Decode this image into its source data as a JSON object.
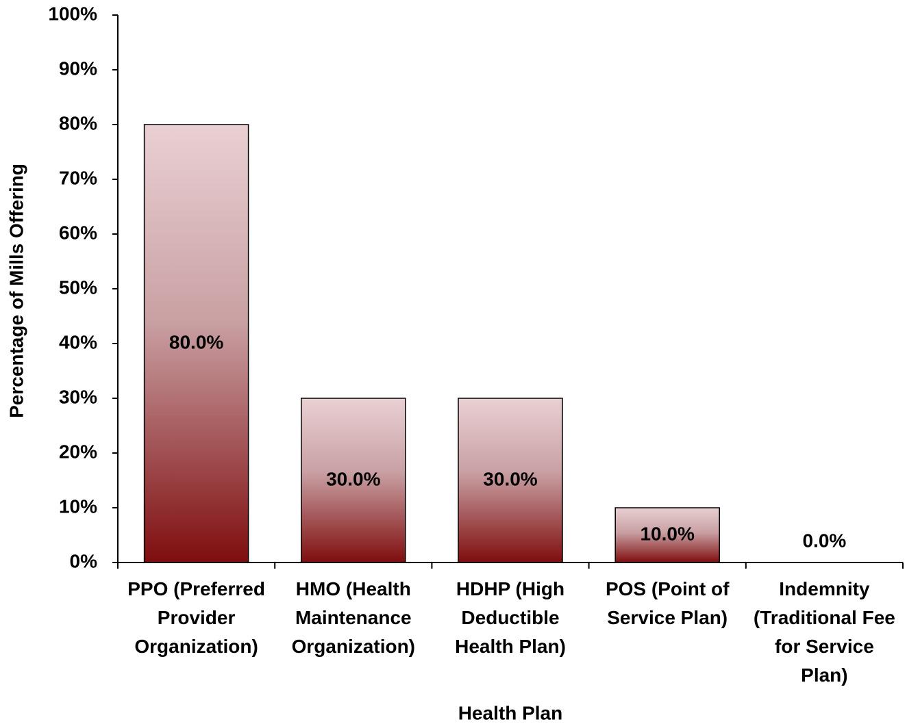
{
  "chart_data": {
    "type": "bar",
    "x_label": "Health Plan",
    "y_label": "Percentage of Mills Offering",
    "categories": [
      "PPO (Preferred Provider Organization)",
      "HMO (Health Maintenance Organization)",
      "HDHP (High Deductible Health Plan)",
      "POS (Point of Service Plan)",
      "Indemnity (Traditional Fee for Service Plan)"
    ],
    "values": [
      80,
      30,
      30,
      10,
      0
    ],
    "value_labels": [
      "80.0%",
      "30.0%",
      "30.0%",
      "10.0%",
      "0.0%"
    ],
    "color_top": "#e9d0d3",
    "color_bottom": "#7f0d0e",
    "ylim": [
      0,
      100
    ],
    "yticks": [
      {
        "value": 0,
        "label": "0%"
      },
      {
        "value": 10,
        "label": "10%"
      },
      {
        "value": 20,
        "label": "20%"
      },
      {
        "value": 30,
        "label": "30%"
      },
      {
        "value": 40,
        "label": "40%"
      },
      {
        "value": 50,
        "label": "50%"
      },
      {
        "value": 60,
        "label": "60%"
      },
      {
        "value": 70,
        "label": "70%"
      },
      {
        "value": 80,
        "label": "80%"
      },
      {
        "value": 90,
        "label": "90%"
      },
      {
        "value": 100,
        "label": "100%"
      }
    ],
    "grid": false
  }
}
